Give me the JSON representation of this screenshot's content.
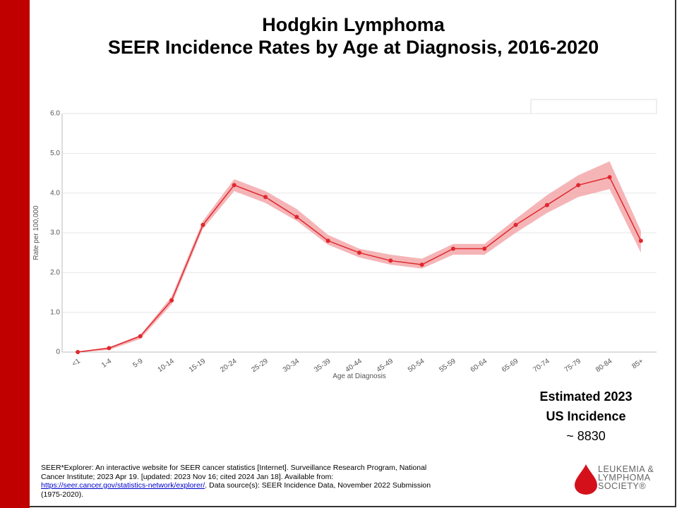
{
  "slide": {
    "title_line1": "Hodgkin Lymphoma",
    "title_line2": "SEER Incidence Rates by Age at Diagnosis, 2016-2020",
    "estimate": {
      "line1": "Estimated 2023",
      "line2": "US Incidence",
      "line3": "~ 8830"
    },
    "citation": {
      "before": "SEER*Explorer: An interactive website for SEER cancer statistics [Internet]. Surveillance Research Program, National Cancer Institute; 2023 Apr 19. [updated: 2023 Nov 16; cited 2024 Jan 18]. Available from: ",
      "link": "https://seer.cancer.gov/statistics-network/explorer/",
      "after": ". Data source(s): SEER Incidence Data, November 2022 Submission (1975-2020)."
    },
    "logo": {
      "line1": "LEUKEMIA &",
      "line2": "LYMPHOMA",
      "line3": "SOCIETY®"
    }
  },
  "chart_data": {
    "type": "line",
    "x_label": "Age at Diagnosis",
    "y_label": "Rate per 100,000",
    "categories": [
      "<1",
      "1-4",
      "5-9",
      "10-14",
      "15-19",
      "20-24",
      "25-29",
      "30-34",
      "35-39",
      "40-44",
      "45-49",
      "50-54",
      "55-59",
      "60-64",
      "65-69",
      "70-74",
      "75-79",
      "80-84",
      "85+"
    ],
    "series": [
      {
        "color": "#e0282e",
        "band_color": "#f2a3a5",
        "values": [
          0.0,
          0.1,
          0.4,
          1.3,
          3.2,
          4.2,
          3.9,
          3.4,
          2.8,
          2.5,
          2.3,
          2.2,
          2.6,
          2.6,
          3.2,
          3.7,
          4.2,
          4.4,
          2.8
        ],
        "ci_lower": [
          0.0,
          0.05,
          0.33,
          1.2,
          3.1,
          4.05,
          3.75,
          3.3,
          2.7,
          2.38,
          2.2,
          2.1,
          2.45,
          2.45,
          3.0,
          3.5,
          3.9,
          4.1,
          2.5
        ],
        "ci_upper": [
          0.02,
          0.12,
          0.43,
          1.4,
          3.3,
          4.35,
          4.05,
          3.6,
          2.95,
          2.6,
          2.45,
          2.35,
          2.72,
          2.72,
          3.35,
          3.95,
          4.45,
          4.8,
          3.05
        ]
      }
    ],
    "ylim": [
      0,
      6
    ],
    "yticks": [
      0,
      {
        "value": 1,
        "label": "1.0"
      },
      {
        "value": 2,
        "label": "2.0"
      },
      {
        "value": 3,
        "label": "3.0"
      },
      {
        "value": 4,
        "label": "4.0"
      },
      {
        "value": 5,
        "label": "5.0"
      },
      {
        "value": 6,
        "label": "6.0"
      }
    ],
    "grid": true
  }
}
